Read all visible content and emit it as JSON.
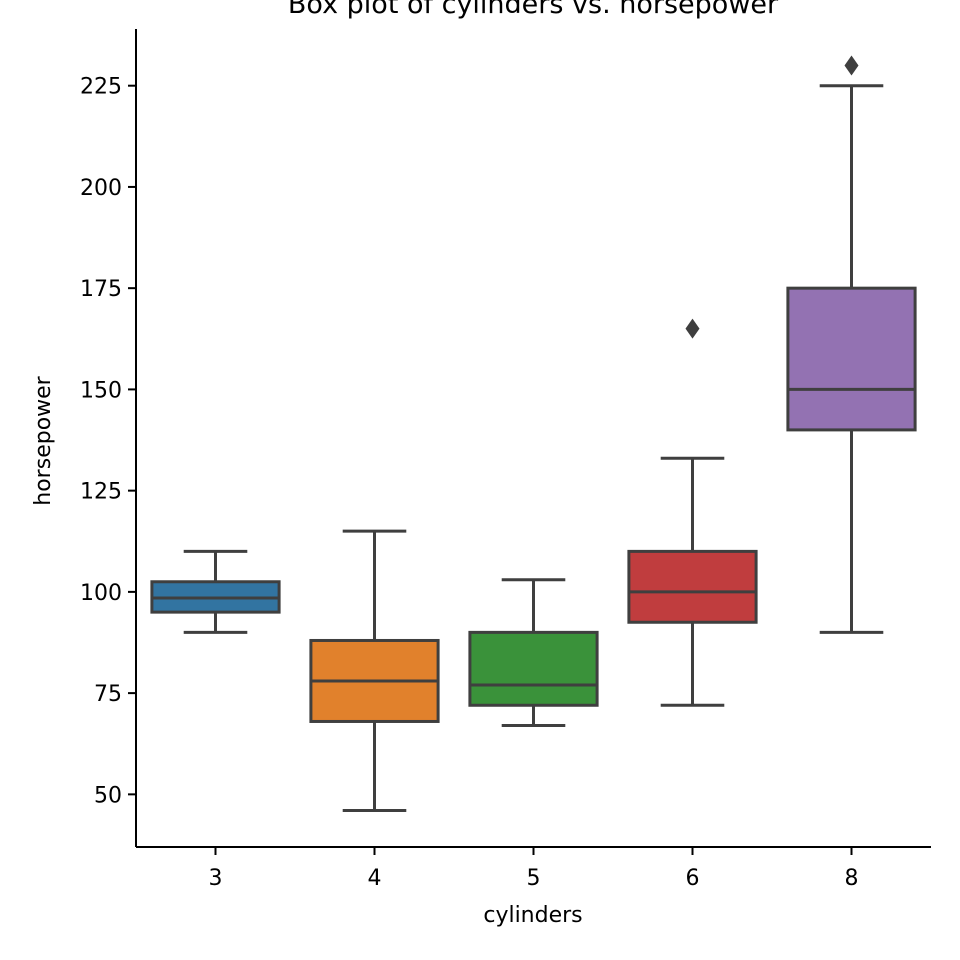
{
  "chart_data": {
    "type": "box",
    "title": "Box plot of cylinders vs. horsepower",
    "xlabel": "cylinders",
    "ylabel": "horsepower",
    "ylim": [
      37,
      239
    ],
    "yticks": [
      50,
      75,
      100,
      125,
      150,
      175,
      200,
      225
    ],
    "grid": false,
    "categories": [
      "3",
      "4",
      "5",
      "6",
      "8"
    ],
    "boxes": [
      {
        "category": "3",
        "color": "#3274a1",
        "whisker_low": 90,
        "q1": 95,
        "median": 98.5,
        "q3": 102.5,
        "whisker_high": 110,
        "outliers": []
      },
      {
        "category": "4",
        "color": "#e1812c",
        "whisker_low": 46,
        "q1": 68,
        "median": 78,
        "q3": 88,
        "whisker_high": 115,
        "outliers": []
      },
      {
        "category": "5",
        "color": "#3a923a",
        "whisker_low": 67,
        "q1": 72,
        "median": 77,
        "q3": 90,
        "whisker_high": 103,
        "outliers": []
      },
      {
        "category": "6",
        "color": "#c03d3e",
        "whisker_low": 72,
        "q1": 92.5,
        "median": 100,
        "q3": 110,
        "whisker_high": 133,
        "outliers": [
          165
        ]
      },
      {
        "category": "8",
        "color": "#9372b2",
        "whisker_low": 90,
        "q1": 140,
        "median": 150,
        "q3": 175,
        "whisker_high": 225,
        "outliers": [
          230
        ]
      }
    ]
  }
}
